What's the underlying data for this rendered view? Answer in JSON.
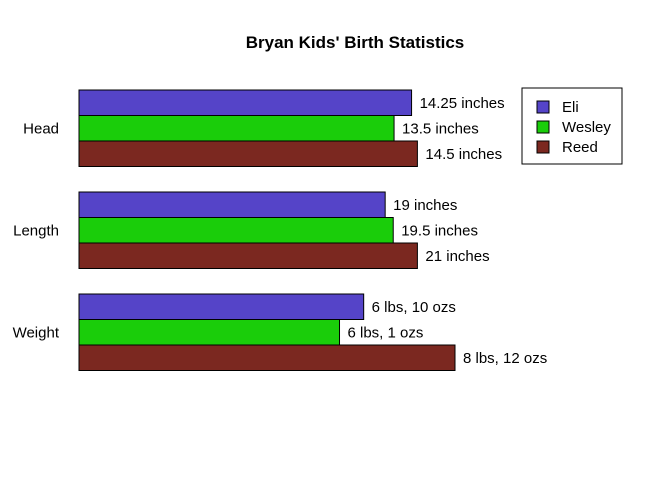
{
  "chart_data": {
    "type": "bar",
    "orientation": "horizontal",
    "title": "Bryan Kids' Birth Statistics",
    "xlabel": "",
    "ylabel": "",
    "grid": false,
    "legend_position": "top-right",
    "categories": [
      "Head",
      "Length",
      "Weight"
    ],
    "series": [
      {
        "name": "Eli",
        "color": "#5544c8",
        "values": [
          14.25,
          19,
          6.625
        ],
        "labels": [
          "14.25 inches",
          "19 inches",
          "6 lbs, 10 ozs"
        ]
      },
      {
        "name": "Wesley",
        "color": "#1acd0a",
        "values": [
          13.5,
          19.5,
          6.0625
        ],
        "labels": [
          "13.5 inches",
          "19.5 inches",
          "6 lbs, 1 ozs"
        ]
      },
      {
        "name": "Reed",
        "color": "#7b2820",
        "values": [
          14.5,
          21,
          8.75
        ],
        "labels": [
          "14.5 inches",
          "21 inches",
          "8 lbs, 12 ozs"
        ]
      }
    ],
    "category_max": [
      14.5,
      21,
      8.75
    ],
    "bar_extent_fraction": [
      0.9,
      0.9,
      1.0
    ]
  }
}
